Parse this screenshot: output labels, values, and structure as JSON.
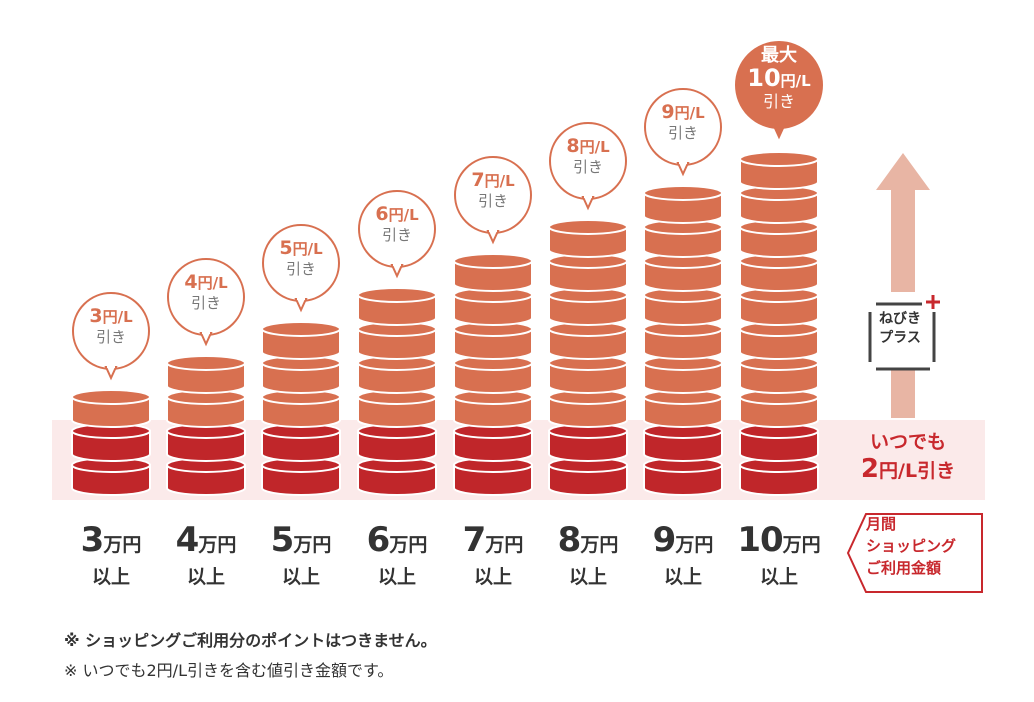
{
  "colors": {
    "base_coin": "#c0262a",
    "plus_coin": "#d87050",
    "band": "#fbeaea",
    "arrow": "#e8b5a4",
    "accent_text": "#c8282d",
    "text": "#333333"
  },
  "chart_data": {
    "type": "bar",
    "categories": [
      "3万円以上",
      "4万円以上",
      "5万円以上",
      "6万円以上",
      "7万円以上",
      "8万円以上",
      "9万円以上",
      "10万円以上"
    ],
    "series": [
      {
        "name": "いつでも2円/L引き",
        "values": [
          2,
          2,
          2,
          2,
          2,
          2,
          2,
          2
        ]
      },
      {
        "name": "ねびきプラス",
        "values": [
          1,
          2,
          3,
          4,
          5,
          6,
          7,
          8
        ]
      }
    ],
    "unit": "円/L",
    "columns": [
      {
        "num": "3",
        "unit": "万円",
        "sub": "以上",
        "disc_num": "3",
        "disc_unit": "円/L",
        "disc_sub": "引き",
        "total": 3
      },
      {
        "num": "4",
        "unit": "万円",
        "sub": "以上",
        "disc_num": "4",
        "disc_unit": "円/L",
        "disc_sub": "引き",
        "total": 4
      },
      {
        "num": "5",
        "unit": "万円",
        "sub": "以上",
        "disc_num": "5",
        "disc_unit": "円/L",
        "disc_sub": "引き",
        "total": 5
      },
      {
        "num": "6",
        "unit": "万円",
        "sub": "以上",
        "disc_num": "6",
        "disc_unit": "円/L",
        "disc_sub": "引き",
        "total": 6
      },
      {
        "num": "7",
        "unit": "万円",
        "sub": "以上",
        "disc_num": "7",
        "disc_unit": "円/L",
        "disc_sub": "引き",
        "total": 7
      },
      {
        "num": "8",
        "unit": "万円",
        "sub": "以上",
        "disc_num": "8",
        "disc_unit": "円/L",
        "disc_sub": "引き",
        "total": 8
      },
      {
        "num": "9",
        "unit": "万円",
        "sub": "以上",
        "disc_num": "9",
        "disc_unit": "円/L",
        "disc_sub": "引き",
        "total": 9
      },
      {
        "num": "10",
        "unit": "万円",
        "sub": "以上",
        "disc_pre": "最大",
        "disc_num": "10",
        "disc_unit": "円/L",
        "disc_sub": "引き",
        "total": 10
      }
    ],
    "always_label": {
      "line1": "いつでも",
      "num": "2",
      "unit": "円/L",
      "suffix": "引き"
    },
    "plus_label": {
      "line1": "ねびき",
      "line2": "プラス",
      "mark": "+"
    },
    "x_axis_label": [
      "月間",
      "ショッピング",
      "ご利用金額"
    ]
  },
  "notes": [
    "※ ショッピングご利用分のポイントはつきません。",
    "※ いつでも2円/L引きを含む値引き金額です。"
  ]
}
